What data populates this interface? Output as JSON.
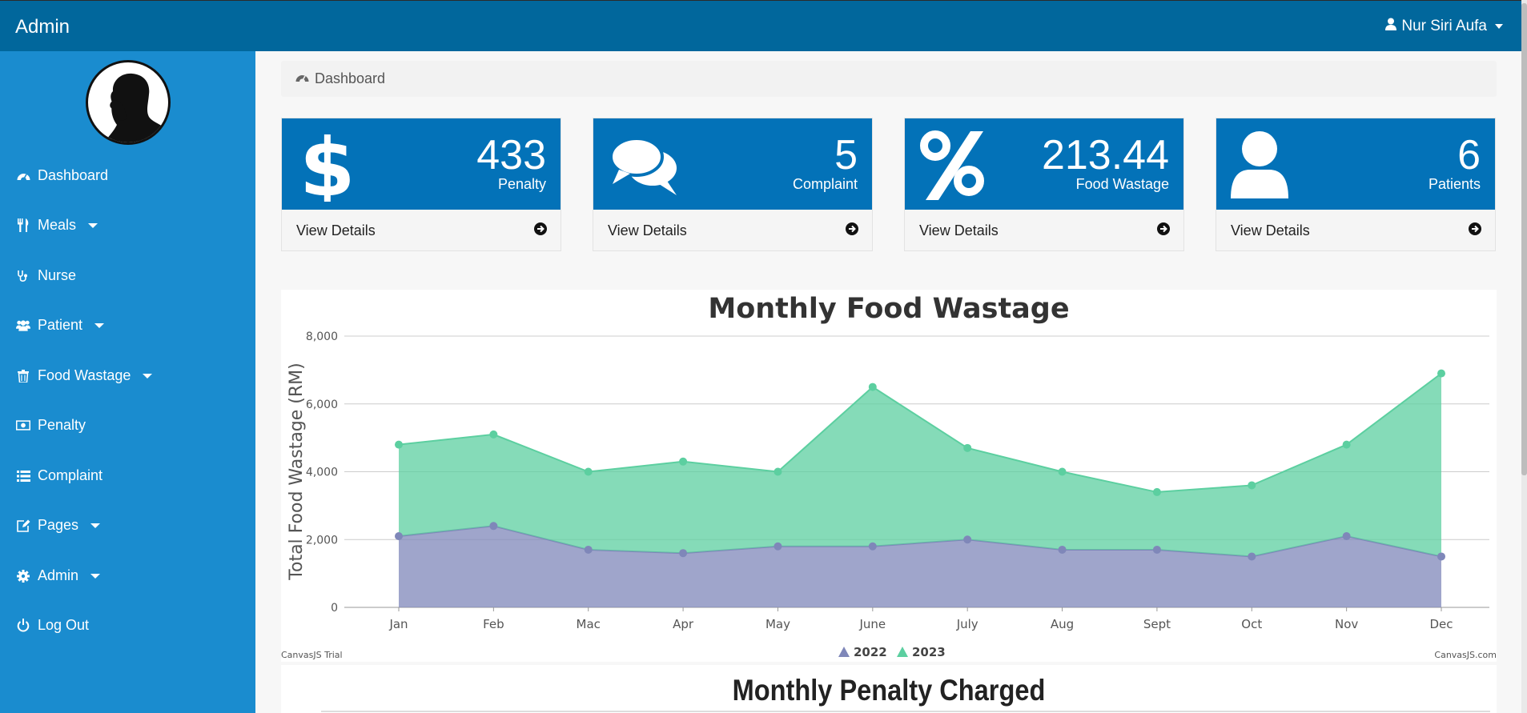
{
  "app": {
    "brand": "Admin",
    "user_name": "Nur Siri Aufa"
  },
  "sidebar": {
    "items": [
      {
        "label": "Dashboard",
        "icon": "dashboard-icon",
        "dropdown": false
      },
      {
        "label": "Meals",
        "icon": "cutlery-icon",
        "dropdown": true
      },
      {
        "label": "Nurse",
        "icon": "stethoscope-icon",
        "dropdown": false
      },
      {
        "label": "Patient",
        "icon": "users-icon",
        "dropdown": true
      },
      {
        "label": "Food Wastage",
        "icon": "trash-icon",
        "dropdown": true
      },
      {
        "label": "Penalty",
        "icon": "money-icon",
        "dropdown": false
      },
      {
        "label": "Complaint",
        "icon": "list-icon",
        "dropdown": false
      },
      {
        "label": "Pages",
        "icon": "edit-icon",
        "dropdown": true
      },
      {
        "label": "Admin",
        "icon": "gear-icon",
        "dropdown": true
      },
      {
        "label": "Log Out",
        "icon": "power-icon",
        "dropdown": false
      }
    ]
  },
  "breadcrumb": {
    "label": "Dashboard"
  },
  "cards": [
    {
      "value": "433",
      "label": "Penalty",
      "icon": "dollar-icon",
      "link": "View Details"
    },
    {
      "value": "5",
      "label": "Complaint",
      "icon": "comments-icon",
      "link": "View Details"
    },
    {
      "value": "213.44",
      "label": "Food Wastage",
      "icon": "percent-icon",
      "link": "View Details"
    },
    {
      "value": "6",
      "label": "Patients",
      "icon": "user-icon",
      "link": "View Details"
    }
  ],
  "chart_data": {
    "type": "area",
    "title": "Monthly Food Wastage",
    "ylabel": "Total Food Wastage (RM)",
    "xlabel": "",
    "categories": [
      "Jan",
      "Feb",
      "Mac",
      "Apr",
      "May",
      "June",
      "July",
      "Aug",
      "Sept",
      "Oct",
      "Nov",
      "Dec"
    ],
    "series": [
      {
        "name": "2022",
        "color": "#7f87b9",
        "values": [
          2100,
          2400,
          1700,
          1600,
          1800,
          1800,
          2000,
          1700,
          1700,
          1500,
          2100,
          1500
        ]
      },
      {
        "name": "2023",
        "color": "#5ccfa0",
        "values": [
          4800,
          5100,
          4000,
          4300,
          4000,
          6500,
          4700,
          4000,
          3400,
          3600,
          4800,
          6900
        ]
      }
    ],
    "yticks": [
      "0",
      "2,000",
      "4,000",
      "6,000",
      "8,000"
    ],
    "ylim": [
      0,
      8000
    ],
    "grid": true,
    "legend_position": "bottom-center",
    "watermark_left": "CanvasJS Trial",
    "watermark_right": "CanvasJS.com"
  },
  "chart2": {
    "title": "Monthly Penalty Charged"
  }
}
